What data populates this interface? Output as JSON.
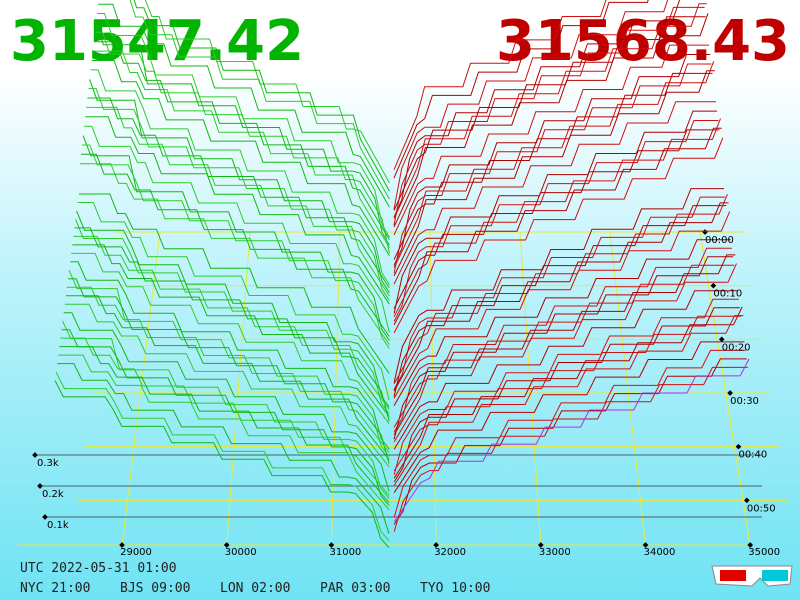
{
  "header": {
    "bid_price": "31547.42",
    "ask_price": "31568.43"
  },
  "axes": {
    "price_labels": [
      "29000",
      "30000",
      "31000",
      "32000",
      "33000",
      "34000",
      "35000"
    ],
    "depth_labels": [
      "0.3k",
      "0.2k",
      "0.1k"
    ],
    "time_labels": [
      "00:00",
      "00:10",
      "00:20",
      "00:30",
      "00:40",
      "00:50"
    ]
  },
  "footer": {
    "utc": "UTC 2022-05-31 01:00",
    "zones": [
      "NYC 21:00",
      "BJS 09:00",
      "LON 02:00",
      "PAR 03:00",
      "TYO 10:00"
    ]
  }
}
